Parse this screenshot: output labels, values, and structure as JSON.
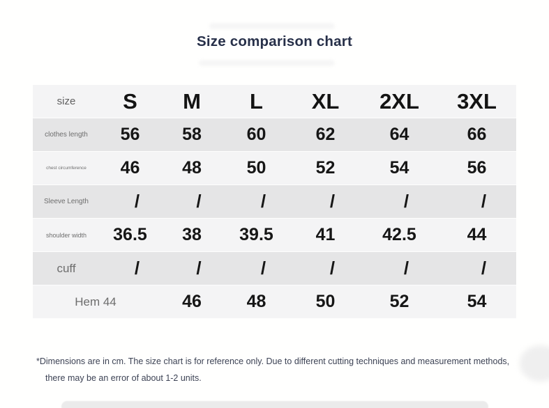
{
  "chart_data": {
    "type": "table",
    "title": "Size comparison chart",
    "units": "cm",
    "header": {
      "label": "size",
      "columns": [
        "S",
        "M",
        "L",
        "XL",
        "2XL",
        "3XL"
      ]
    },
    "rows": [
      {
        "label": "clothes length",
        "values": [
          "56",
          "58",
          "60",
          "62",
          "64",
          "66"
        ]
      },
      {
        "label": "chest circumference",
        "values": [
          "46",
          "48",
          "50",
          "52",
          "54",
          "56"
        ]
      },
      {
        "label": "Sleeve Length",
        "values": [
          "/",
          "/",
          "/",
          "/",
          "/",
          "/"
        ]
      },
      {
        "label": "shoulder width",
        "values": [
          "36.5",
          "38",
          "39.5",
          "41",
          "42.5",
          "44"
        ]
      },
      {
        "label": "cuff",
        "values": [
          "/",
          "/",
          "/",
          "/",
          "/",
          "/"
        ]
      },
      {
        "label": "Hem 44",
        "values": [
          "",
          "46",
          "48",
          "50",
          "52",
          "54"
        ]
      }
    ],
    "footnote": {
      "line1": "*Dimensions are in cm. The size chart is for reference only. Due to different cutting techniques and measurement methods,",
      "line2": "there may be an error of about 1-2 units."
    }
  },
  "colors": {
    "title_text": "#273049",
    "row_light": "#f4f4f5",
    "row_dark": "#e5e5e6",
    "label_gray": "#6d6d6d",
    "value_black": "#161616",
    "footnote_text": "#3c4254"
  }
}
